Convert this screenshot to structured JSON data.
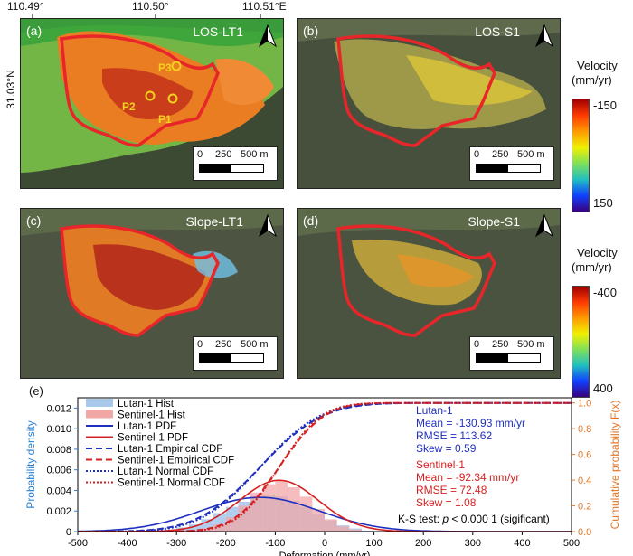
{
  "top_coords": {
    "x1": "110.49°",
    "x2": "110.50°",
    "x3": "110.51°E",
    "y1": "31.03°N"
  },
  "panels": [
    {
      "label": "(a)",
      "title": "LOS-LT1"
    },
    {
      "label": "(b)",
      "title": "LOS-S1"
    },
    {
      "label": "(c)",
      "title": "Slope-LT1"
    },
    {
      "label": "(d)",
      "title": "Slope-S1"
    }
  ],
  "points": [
    "P1",
    "P2",
    "P3"
  ],
  "scalebar": {
    "t0": "0",
    "t1": "250",
    "t2": "500 m"
  },
  "colorbar_top": {
    "title1": "Velocity",
    "title2": "(mm/yr)",
    "max": "-150",
    "min": "150"
  },
  "colorbar_bottom": {
    "title1": "Velocity",
    "title2": "(mm/yr)",
    "max": "-400",
    "min": "400"
  },
  "colors": {
    "outline": "#e8262a",
    "lutan": "#1f2fbf",
    "sentinel": "#d62020",
    "hist_lutan": "#a9c9ec",
    "hist_sentinel": "#f2a7a7",
    "right_axis": "#e0772a",
    "left_axis": "#2a7fcf"
  },
  "chart_data": {
    "type": "bar",
    "panel_label": "(e)",
    "title": "",
    "xlabel": "Deformation (mm/yr)",
    "ylabel": "Probability density",
    "ylabel_right": "Cumulative probability F(x)",
    "xlim": [
      -500,
      500
    ],
    "ylim": [
      0,
      0.013
    ],
    "ylim_right": [
      0,
      1.04
    ],
    "x_ticks": [
      -500,
      -400,
      -300,
      -200,
      -100,
      0,
      100,
      200,
      300,
      400,
      500
    ],
    "x_tick_labels": [
      "-500",
      "-400",
      "-300",
      "-200",
      "-100",
      "0",
      "100",
      "200",
      "300",
      "400",
      "500"
    ],
    "y_ticks": [
      0,
      0.002,
      0.004,
      0.006,
      0.008,
      0.01,
      0.012
    ],
    "y_tick_labels": [
      "0",
      "0.002",
      "0.004",
      "0.006",
      "0.008",
      "0.010",
      "0.012"
    ],
    "y2_ticks": [
      0,
      0.2,
      0.4,
      0.6,
      0.8,
      1.0
    ],
    "y2_tick_labels": [
      "0.0",
      "0.2",
      "0.4",
      "0.6",
      "0.8",
      "1.0"
    ],
    "histograms": [
      {
        "name": "Lutan-1 Hist",
        "bin_width": 25,
        "bin_centers": [
          -337.5,
          -312.5,
          -287.5,
          -262.5,
          -237.5,
          -212.5,
          -187.5,
          -162.5,
          -137.5,
          -112.5,
          -87.5,
          -62.5,
          -37.5,
          -12.5,
          12.5,
          37.5,
          62.5,
          87.5
        ],
        "values": [
          0.0001,
          0.0002,
          0.0004,
          0.0007,
          0.0012,
          0.0018,
          0.0024,
          0.0029,
          0.0033,
          0.0035,
          0.0034,
          0.003,
          0.0024,
          0.0017,
          0.0011,
          0.0006,
          0.0003,
          0.0001
        ]
      },
      {
        "name": "Sentinel-1 Hist",
        "bin_width": 25,
        "bin_centers": [
          -262.5,
          -237.5,
          -212.5,
          -187.5,
          -162.5,
          -137.5,
          -112.5,
          -87.5,
          -62.5,
          -37.5,
          -12.5,
          12.5,
          37.5,
          62.5
        ],
        "values": [
          0.0001,
          0.0003,
          0.0007,
          0.0014,
          0.0025,
          0.0038,
          0.0046,
          0.0049,
          0.0043,
          0.0034,
          0.0022,
          0.0012,
          0.0005,
          0.0002
        ]
      }
    ],
    "series": [
      {
        "name": "Lutan-1 PDF",
        "kind": "pdf",
        "mean": -130.93,
        "sd": 120,
        "skew": 0.59,
        "style": "solid",
        "color": "#1f2fbf"
      },
      {
        "name": "Sentinel-1 PDF",
        "kind": "pdf",
        "mean": -92.34,
        "sd": 80,
        "skew": 1.08,
        "style": "solid",
        "color": "#d62020"
      },
      {
        "name": "Lutan-1 Empirical CDF",
        "kind": "ecdf",
        "mean": -130.93,
        "sd": 100,
        "style": "dashed",
        "color": "#1f2fbf"
      },
      {
        "name": "Sentinel-1 Empirical CDF",
        "kind": "ecdf",
        "mean": -92.34,
        "sd": 72,
        "style": "dashed",
        "color": "#d62020"
      },
      {
        "name": "Lutan-1 Normal CDF",
        "kind": "ncdf",
        "mean": -130.93,
        "sd": 95,
        "style": "dotted",
        "color": "#1f2fbf"
      },
      {
        "name": "Sentinel-1 Normal CDF",
        "kind": "ncdf",
        "mean": -92.34,
        "sd": 68,
        "style": "dotted",
        "color": "#d62020"
      }
    ],
    "legend": [
      "Lutan-1 Hist",
      "Sentinel-1 Hist",
      "Lutan-1 PDF",
      "Sentinel-1 PDF",
      "Lutan-1 Empirical CDF",
      "Sentinel-1 Empirical CDF",
      "Lutan-1 Normal CDF",
      "Sentinel-1 Normal CDF"
    ],
    "legend_position": "top-left",
    "stats": {
      "lutan": [
        "Lutan-1",
        "Mean = -130.93 mm/yr",
        "RMSE = 113.62",
        "Skew = 0.59"
      ],
      "sentinel": [
        "Sentinel-1",
        "Mean = -92.34 mm/yr",
        "RMSE = 72.48",
        "Skew = 1.08"
      ]
    },
    "ks_prefix": "K-S test: ",
    "ks_p": "p",
    "ks_suffix": " < 0.000 1 (sigificant)"
  }
}
